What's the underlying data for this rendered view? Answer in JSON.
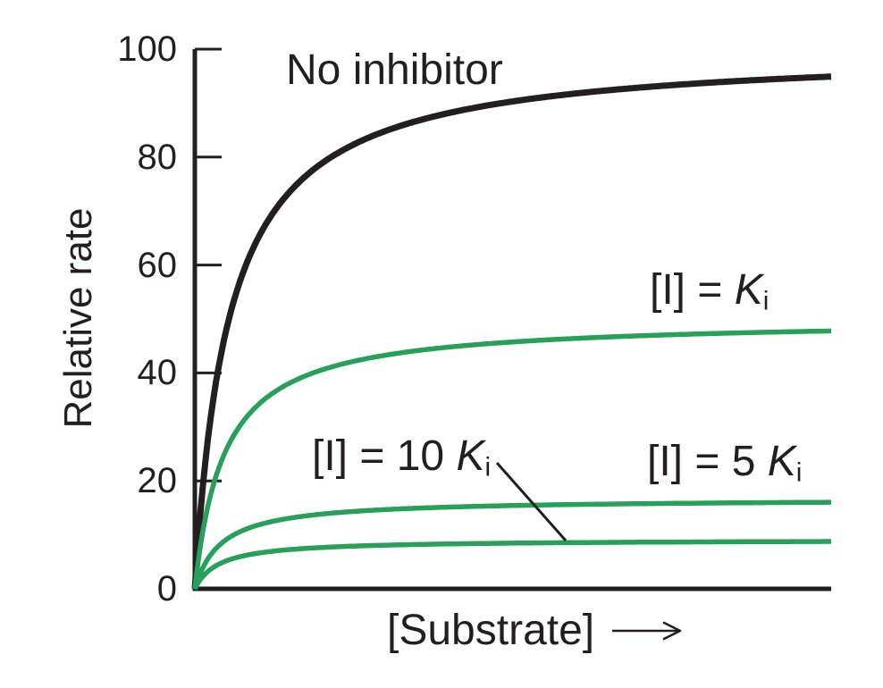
{
  "colors": {
    "background": "#ffffff",
    "ink": "#231f20",
    "inhibited_series": "#27a05a"
  },
  "chart_data": {
    "type": "line",
    "model": "michaelis_menten_saturation",
    "title": "",
    "xlabel": "[Substrate]",
    "ylabel": "Relative rate",
    "x_axis": {
      "label": "[Substrate]",
      "has_arrow": true,
      "tick_labels": [],
      "range_km_units": [
        0,
        28
      ]
    },
    "y_axis": {
      "label": "Relative rate",
      "ticks": [
        0,
        20,
        40,
        60,
        80,
        100
      ],
      "range": [
        0,
        100
      ]
    },
    "legend": "inline-curve-labels",
    "grid": false,
    "series": [
      {
        "name": "No inhibitor",
        "color_key": "ink",
        "vmax": 100,
        "km_units": 1.5,
        "plateau_value_shown": 96,
        "stroke_width": 7
      },
      {
        "name": "[I] = Ki",
        "color_key": "inhibited_series",
        "vmax": 50,
        "km_units": 1.3,
        "plateau_value_shown": 48,
        "stroke_width": 5.5
      },
      {
        "name": "[I] = 5 Ki",
        "color_key": "inhibited_series",
        "vmax": 16.7,
        "km_units": 1.15,
        "plateau_value_shown": 16,
        "stroke_width": 5.5
      },
      {
        "name": "[I] = 10 Ki",
        "color_key": "inhibited_series",
        "vmax": 9.1,
        "km_units": 1.05,
        "plateau_value_shown": 9,
        "stroke_width": 5.5
      }
    ]
  },
  "annotations": {
    "no_inhibitor": {
      "text": "No inhibitor"
    },
    "ki": {
      "prefix": "[I] = ",
      "coef": "",
      "symbol": "K",
      "subscript": "i"
    },
    "ki5": {
      "prefix": "[I] = ",
      "coef": "5 ",
      "symbol": "K",
      "subscript": "i"
    },
    "ki10": {
      "prefix": "[I] = ",
      "coef": "10 ",
      "symbol": "K",
      "subscript": "i"
    }
  }
}
